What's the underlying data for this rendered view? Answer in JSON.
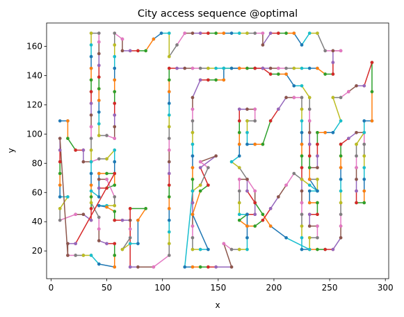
{
  "chart_data": {
    "type": "line",
    "title": "City access sequence @optimal",
    "xlabel": "x",
    "ylabel": "y",
    "xlim": [
      -4,
      303
    ],
    "ylim": [
      1,
      176
    ],
    "xticks": [
      0,
      50,
      100,
      150,
      200,
      250,
      300
    ],
    "yticks": [
      20,
      40,
      60,
      80,
      100,
      120,
      140,
      160
    ],
    "grid": false,
    "legend": "none",
    "marker": "circle",
    "colors": [
      "#1f77b4",
      "#ff7f0e",
      "#2ca02c",
      "#d62728",
      "#9467bd",
      "#8c564b",
      "#e377c2",
      "#7f7f7f",
      "#bcbd22",
      "#17becf"
    ],
    "route": [
      [
        8,
        109
      ],
      [
        15,
        109
      ],
      [
        15,
        97
      ],
      [
        22,
        89
      ],
      [
        29,
        89
      ],
      [
        29,
        81
      ],
      [
        36,
        81
      ],
      [
        43,
        83
      ],
      [
        50,
        83
      ],
      [
        57,
        89
      ],
      [
        57,
        81
      ],
      [
        57,
        73
      ],
      [
        57,
        65
      ],
      [
        50,
        63
      ],
      [
        43,
        63
      ],
      [
        43,
        69
      ],
      [
        50,
        69
      ],
      [
        57,
        57
      ],
      [
        57,
        51
      ],
      [
        50,
        51
      ],
      [
        43,
        51
      ],
      [
        50,
        50
      ],
      [
        57,
        47
      ],
      [
        57,
        41
      ],
      [
        64,
        41
      ],
      [
        71,
        41
      ],
      [
        71,
        35
      ],
      [
        71,
        29
      ],
      [
        64,
        21
      ],
      [
        71,
        25
      ],
      [
        78,
        25
      ],
      [
        78,
        41
      ],
      [
        85,
        49
      ],
      [
        71,
        49
      ],
      [
        71,
        9
      ],
      [
        78,
        9
      ],
      [
        92,
        9
      ],
      [
        106,
        17
      ],
      [
        106,
        25
      ],
      [
        106,
        33
      ],
      [
        106,
        41
      ],
      [
        106,
        49
      ],
      [
        106,
        57
      ],
      [
        106,
        65
      ],
      [
        106,
        73
      ],
      [
        106,
        81
      ],
      [
        106,
        89
      ],
      [
        106,
        97
      ],
      [
        106,
        105
      ],
      [
        106,
        113
      ],
      [
        106,
        121
      ],
      [
        106,
        129
      ],
      [
        106,
        137
      ],
      [
        106,
        145
      ],
      [
        113,
        145
      ],
      [
        120,
        145
      ],
      [
        127,
        145
      ],
      [
        134,
        145
      ],
      [
        141,
        145
      ],
      [
        148,
        145
      ],
      [
        155,
        145
      ],
      [
        155,
        137
      ],
      [
        148,
        137
      ],
      [
        141,
        137
      ],
      [
        134,
        137
      ],
      [
        127,
        125
      ],
      [
        127,
        117
      ],
      [
        127,
        109
      ],
      [
        127,
        101
      ],
      [
        127,
        93
      ],
      [
        127,
        85
      ],
      [
        127,
        77
      ],
      [
        127,
        69
      ],
      [
        127,
        61
      ],
      [
        127,
        53
      ],
      [
        127,
        45
      ],
      [
        127,
        37
      ],
      [
        127,
        29
      ],
      [
        127,
        21
      ],
      [
        134,
        21
      ],
      [
        141,
        21
      ],
      [
        127,
        45
      ],
      [
        134,
        61
      ],
      [
        141,
        65
      ],
      [
        134,
        77
      ],
      [
        148,
        85
      ],
      [
        134,
        81
      ],
      [
        141,
        77
      ],
      [
        134,
        65
      ],
      [
        127,
        61
      ],
      [
        120,
        9
      ],
      [
        127,
        9
      ],
      [
        134,
        9
      ],
      [
        141,
        9
      ],
      [
        148,
        9
      ],
      [
        162,
        9
      ],
      [
        155,
        25
      ],
      [
        162,
        21
      ],
      [
        169,
        21
      ],
      [
        176,
        21
      ],
      [
        176,
        29
      ],
      [
        176,
        37
      ],
      [
        169,
        41
      ],
      [
        176,
        45
      ],
      [
        183,
        45
      ],
      [
        183,
        53
      ],
      [
        183,
        61
      ],
      [
        176,
        69
      ],
      [
        169,
        77
      ],
      [
        162,
        81
      ],
      [
        169,
        85
      ],
      [
        169,
        93
      ],
      [
        169,
        101
      ],
      [
        169,
        109
      ],
      [
        169,
        117
      ],
      [
        176,
        117
      ],
      [
        183,
        117
      ],
      [
        183,
        109
      ],
      [
        176,
        109
      ],
      [
        176,
        101
      ],
      [
        176,
        93
      ],
      [
        183,
        93
      ],
      [
        190,
        93
      ],
      [
        197,
        109
      ],
      [
        204,
        117
      ],
      [
        211,
        125
      ],
      [
        218,
        125
      ],
      [
        225,
        125
      ],
      [
        225,
        117
      ],
      [
        225,
        109
      ],
      [
        225,
        101
      ],
      [
        225,
        93
      ],
      [
        225,
        85
      ],
      [
        225,
        77
      ],
      [
        225,
        69
      ],
      [
        225,
        61
      ],
      [
        225,
        53
      ],
      [
        225,
        45
      ],
      [
        225,
        37
      ],
      [
        225,
        29
      ],
      [
        225,
        21
      ],
      [
        232,
        21
      ],
      [
        239,
        21
      ],
      [
        246,
        21
      ],
      [
        253,
        21
      ],
      [
        260,
        29
      ],
      [
        260,
        37
      ],
      [
        260,
        45
      ],
      [
        260,
        53
      ],
      [
        260,
        61
      ],
      [
        260,
        69
      ],
      [
        260,
        77
      ],
      [
        260,
        85
      ],
      [
        260,
        93
      ],
      [
        267,
        97
      ],
      [
        274,
        101
      ],
      [
        281,
        101
      ],
      [
        281,
        93
      ],
      [
        281,
        85
      ],
      [
        281,
        77
      ],
      [
        281,
        69
      ],
      [
        281,
        61
      ],
      [
        281,
        53
      ],
      [
        274,
        53
      ],
      [
        274,
        61
      ],
      [
        274,
        69
      ],
      [
        274,
        77
      ],
      [
        274,
        85
      ],
      [
        274,
        93
      ],
      [
        281,
        101
      ],
      [
        281,
        109
      ],
      [
        288,
        109
      ],
      [
        288,
        129
      ],
      [
        288,
        149
      ],
      [
        281,
        133
      ],
      [
        274,
        133
      ],
      [
        267,
        129
      ],
      [
        260,
        125
      ],
      [
        253,
        125
      ],
      [
        260,
        109
      ],
      [
        253,
        101
      ],
      [
        246,
        101
      ],
      [
        239,
        101
      ],
      [
        239,
        93
      ],
      [
        239,
        85
      ],
      [
        239,
        77
      ],
      [
        232,
        77
      ],
      [
        232,
        69
      ],
      [
        239,
        69
      ],
      [
        239,
        61
      ],
      [
        232,
        61
      ],
      [
        232,
        53
      ],
      [
        239,
        53
      ],
      [
        239,
        45
      ],
      [
        232,
        45
      ],
      [
        232,
        37
      ],
      [
        239,
        37
      ],
      [
        239,
        29
      ],
      [
        232,
        29
      ],
      [
        232,
        21
      ],
      [
        211,
        29
      ],
      [
        197,
        37
      ],
      [
        190,
        45
      ],
      [
        183,
        53
      ],
      [
        176,
        61
      ],
      [
        176,
        69
      ],
      [
        169,
        69
      ],
      [
        169,
        61
      ],
      [
        169,
        53
      ],
      [
        169,
        45
      ],
      [
        176,
        45
      ],
      [
        176,
        37
      ],
      [
        183,
        37
      ],
      [
        190,
        41
      ],
      [
        197,
        49
      ],
      [
        204,
        57
      ],
      [
        211,
        65
      ],
      [
        218,
        73
      ],
      [
        225,
        69
      ],
      [
        232,
        65
      ],
      [
        239,
        61
      ],
      [
        232,
        69
      ],
      [
        232,
        77
      ],
      [
        232,
        85
      ],
      [
        232,
        93
      ],
      [
        232,
        101
      ],
      [
        232,
        109
      ],
      [
        232,
        117
      ],
      [
        232,
        125
      ],
      [
        225,
        133
      ],
      [
        218,
        133
      ],
      [
        211,
        141
      ],
      [
        204,
        141
      ],
      [
        197,
        141
      ],
      [
        190,
        145
      ],
      [
        183,
        145
      ],
      [
        176,
        145
      ],
      [
        169,
        145
      ],
      [
        162,
        145
      ],
      [
        155,
        145
      ],
      [
        162,
        145
      ],
      [
        169,
        145
      ],
      [
        176,
        145
      ],
      [
        183,
        145
      ],
      [
        190,
        145
      ],
      [
        197,
        145
      ],
      [
        204,
        145
      ],
      [
        211,
        145
      ],
      [
        218,
        145
      ],
      [
        225,
        145
      ],
      [
        232,
        145
      ],
      [
        239,
        145
      ],
      [
        246,
        141
      ],
      [
        253,
        141
      ],
      [
        253,
        149
      ],
      [
        253,
        157
      ],
      [
        260,
        157
      ],
      [
        246,
        157
      ],
      [
        239,
        169
      ],
      [
        232,
        169
      ],
      [
        225,
        161
      ],
      [
        218,
        169
      ],
      [
        211,
        169
      ],
      [
        204,
        169
      ],
      [
        197,
        169
      ],
      [
        190,
        161
      ],
      [
        190,
        169
      ],
      [
        183,
        169
      ],
      [
        176,
        169
      ],
      [
        169,
        169
      ],
      [
        162,
        169
      ],
      [
        155,
        169
      ],
      [
        148,
        169
      ],
      [
        141,
        169
      ],
      [
        134,
        169
      ],
      [
        127,
        169
      ],
      [
        120,
        169
      ],
      [
        113,
        161
      ],
      [
        106,
        153
      ],
      [
        106,
        169
      ],
      [
        99,
        169
      ],
      [
        92,
        165
      ],
      [
        85,
        157
      ],
      [
        78,
        157
      ],
      [
        71,
        157
      ],
      [
        64,
        157
      ],
      [
        64,
        165
      ],
      [
        57,
        169
      ],
      [
        57,
        161
      ],
      [
        57,
        153
      ],
      [
        57,
        145
      ],
      [
        57,
        137
      ],
      [
        57,
        129
      ],
      [
        57,
        121
      ],
      [
        57,
        113
      ],
      [
        57,
        105
      ],
      [
        57,
        97
      ],
      [
        50,
        99
      ],
      [
        43,
        99
      ],
      [
        43,
        107
      ],
      [
        43,
        115
      ],
      [
        43,
        123
      ],
      [
        43,
        131
      ],
      [
        43,
        139
      ],
      [
        43,
        147
      ],
      [
        43,
        155
      ],
      [
        43,
        163
      ],
      [
        43,
        169
      ],
      [
        36,
        169
      ],
      [
        36,
        161
      ],
      [
        36,
        153
      ],
      [
        36,
        145
      ],
      [
        36,
        137
      ],
      [
        36,
        129
      ],
      [
        36,
        121
      ],
      [
        36,
        113
      ],
      [
        36,
        105
      ],
      [
        36,
        97
      ],
      [
        36,
        89
      ],
      [
        36,
        81
      ],
      [
        36,
        73
      ],
      [
        36,
        65
      ],
      [
        36,
        57
      ],
      [
        36,
        49
      ],
      [
        36,
        41
      ],
      [
        29,
        45
      ],
      [
        22,
        45
      ],
      [
        8,
        41
      ],
      [
        8,
        49
      ],
      [
        15,
        57
      ],
      [
        8,
        57
      ],
      [
        8,
        65
      ],
      [
        8,
        73
      ],
      [
        8,
        81
      ],
      [
        8,
        89
      ],
      [
        8,
        97
      ],
      [
        15,
        17
      ],
      [
        22,
        17
      ],
      [
        29,
        17
      ],
      [
        36,
        17
      ],
      [
        43,
        11
      ],
      [
        57,
        9
      ],
      [
        57,
        17
      ],
      [
        57,
        25
      ],
      [
        50,
        25
      ],
      [
        43,
        27
      ],
      [
        43,
        35
      ],
      [
        43,
        43
      ],
      [
        36,
        53
      ],
      [
        36,
        61
      ],
      [
        43,
        57
      ],
      [
        43,
        73
      ],
      [
        50,
        73
      ],
      [
        57,
        73
      ],
      [
        22,
        25
      ],
      [
        15,
        25
      ],
      [
        15,
        17
      ]
    ]
  }
}
